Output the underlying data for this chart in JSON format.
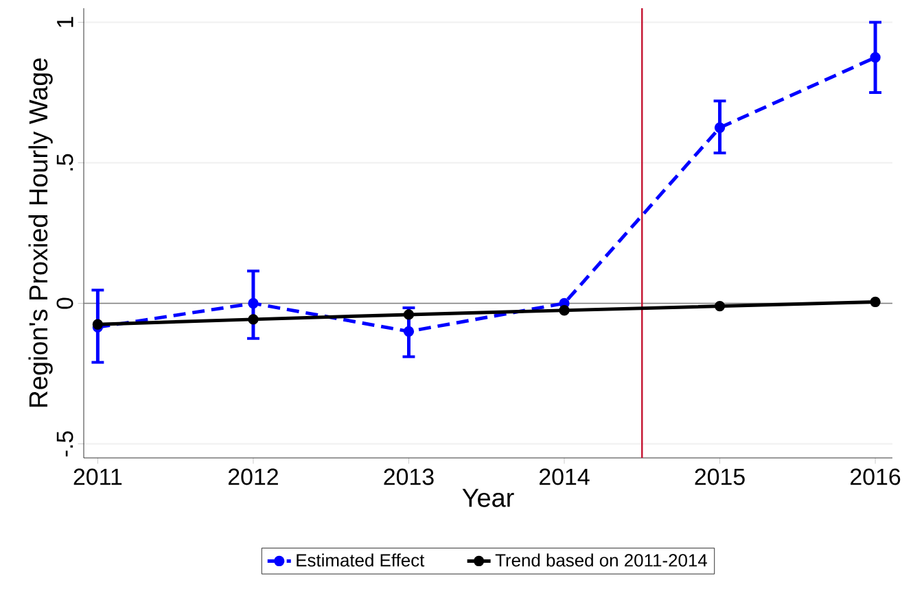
{
  "chart_data": {
    "type": "line",
    "xlabel": "Year",
    "ylabel": "Region's Proxied Hourly Wage",
    "x": [
      2011,
      2012,
      2013,
      2014,
      2015,
      2016
    ],
    "series": [
      {
        "name": "Estimated Effect",
        "color": "#0000ff",
        "line_style": "dashed",
        "values": [
          -0.085,
          0,
          -0.1,
          0,
          0.625,
          0.875
        ],
        "errors": [
          [
            -0.21,
            0.047
          ],
          [
            -0.125,
            0.115
          ],
          [
            -0.19,
            -0.016
          ],
          null,
          [
            0.535,
            0.72
          ],
          [
            0.75,
            1.0
          ]
        ]
      },
      {
        "name": "Trend based on 2011-2014",
        "color": "#000000",
        "line_style": "solid",
        "values": [
          -0.075,
          -0.057,
          -0.04,
          -0.025,
          -0.01,
          0.005
        ]
      }
    ],
    "marker": "circle",
    "xlim": [
      2010.91,
      2016.11
    ],
    "ylim": [
      -0.55,
      1.05
    ],
    "xticks": [
      2011,
      2012,
      2013,
      2014,
      2015,
      2016
    ],
    "yticks": [
      {
        "value": -0.5,
        "label": "-.5"
      },
      0,
      {
        "value": 0.5,
        "label": ".5"
      },
      1
    ],
    "grid": "y",
    "legend": "bottom",
    "ref_lines": [
      {
        "axis": "y",
        "value": 0,
        "color": "#808080",
        "line_style": "solid"
      },
      {
        "axis": "x",
        "value": 2014.5,
        "color": "#c4122f",
        "line_style": "solid"
      }
    ]
  }
}
